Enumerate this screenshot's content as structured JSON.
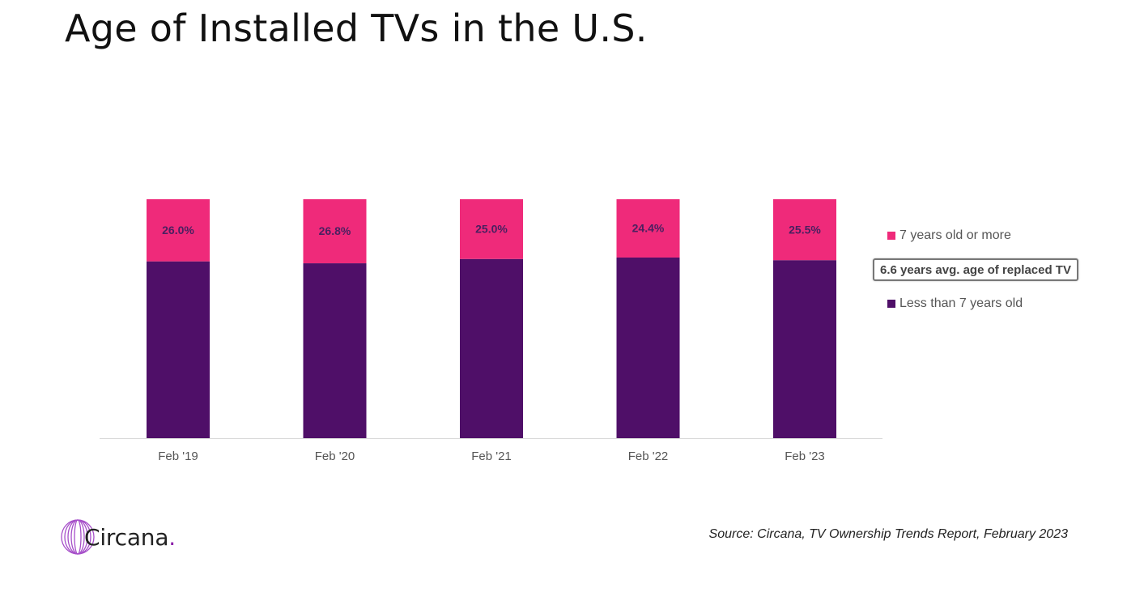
{
  "title": "Age of Installed TVs in the U.S.",
  "chart_data": {
    "type": "bar",
    "stacked": true,
    "normalized_percent": true,
    "categories": [
      "Feb '19",
      "Feb '20",
      "Feb '21",
      "Feb '22",
      "Feb '23"
    ],
    "series": [
      {
        "name": "Less than 7 years old",
        "color": "#4f0f68",
        "values": [
          74.0,
          73.2,
          75.0,
          75.6,
          74.5
        ],
        "labels": []
      },
      {
        "name": "7 years old or more",
        "color": "#ef2a7a",
        "values": [
          26.0,
          26.8,
          25.0,
          24.4,
          25.5
        ],
        "labels": [
          "26.0%",
          "26.8%",
          "25.0%",
          "24.4%",
          "25.5%"
        ]
      }
    ],
    "ylim": [
      0,
      100
    ],
    "grid": false,
    "legend_position": "right",
    "annotation": "6.6 years avg. age of replaced TV",
    "xlabel": "",
    "ylabel": ""
  },
  "legend": {
    "top_label": "7 years old or more",
    "annotation": "6.6 years avg. age of replaced TV",
    "bottom_label": "Less than 7 years old"
  },
  "footer": {
    "logo_text": "Circana",
    "logo_dot": ".",
    "source": "Source: Circana, TV Ownership Trends Report, February 2023"
  },
  "colors": {
    "pink": "#ef2a7a",
    "purple": "#4f0f68",
    "logo_accent": "#8b1fa9"
  }
}
